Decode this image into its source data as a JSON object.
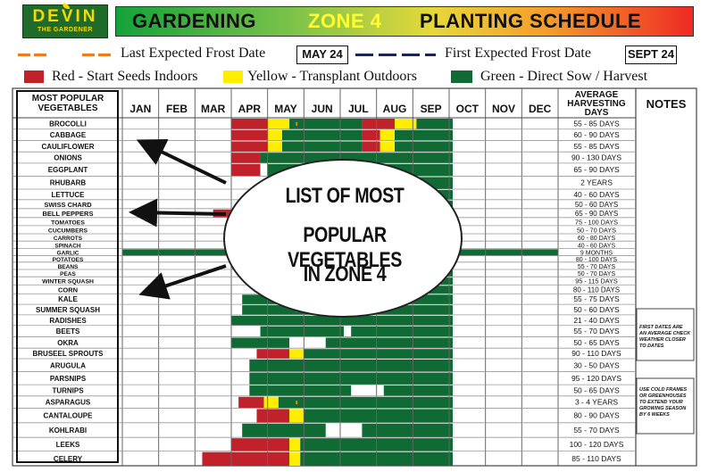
{
  "header": {
    "logo_name": "DEVIN",
    "logo_sub": "THE GARDENER",
    "title_gardening": "GARDENING",
    "title_zone": "ZONE 4",
    "title_planting": "PLANTING SCHEDULE"
  },
  "legend": {
    "last_frost_label": "Last Expected Frost Date",
    "last_frost_date": "MAY 24",
    "first_frost_label": "First Expected Frost Date",
    "first_frost_date": "SEPT 24",
    "red_label": "Red - Start Seeds Indoors",
    "yellow_label": "Yellow - Transplant Outdoors",
    "green_label": "Green - Direct Sow / Harvest",
    "colors": {
      "red": "#c0212a",
      "yellow": "#ffee00",
      "green": "#0f6a34",
      "orange": "#f07a20",
      "navy": "#1a2450"
    }
  },
  "table": {
    "veg_header_1": "MOST POPULAR",
    "veg_header_2": "VEGETABLES",
    "harvest_header_1": "AVERAGE",
    "harvest_header_2": "HARVESTING",
    "harvest_header_3": "DAYS",
    "notes_header": "NOTES",
    "note_1": [
      "FIRST DATES ARE",
      "AN AVERAGE CHECK",
      "WEATHER CLOSER",
      "TO DATES"
    ],
    "note_2": [
      "USE COLD FRAMES",
      "OR GREENHOUSES",
      "TO EXTEND YOUR",
      "GROWING SEASON",
      "BY 6 WEEKS"
    ]
  },
  "overlay": {
    "line1": "LIST OF MOST",
    "line2": "POPULAR  VEGETABLES",
    "line3": "IN ZONE 4"
  },
  "chart_data": {
    "type": "table",
    "title": "GARDENING ZONE 4 PLANTING SCHEDULE",
    "months": [
      "JAN",
      "FEB",
      "MAR",
      "APR",
      "MAY",
      "JUN",
      "JUL",
      "AUG",
      "SEP",
      "OCT",
      "NOV",
      "DEC"
    ],
    "rows": [
      {
        "veg": "BROCOLLI",
        "days": "55 - 85 DAYS",
        "segs": [
          [
            "r",
            3,
            4
          ],
          [
            "y",
            4,
            4.6
          ],
          [
            "g",
            4.6,
            6.6
          ],
          [
            "r",
            6.6,
            7.5
          ],
          [
            "y",
            7.5,
            8.1
          ],
          [
            "g",
            8.1,
            9.1
          ]
        ]
      },
      {
        "veg": "CABBAGE",
        "days": "60 - 90 DAYS",
        "segs": [
          [
            "r",
            3,
            4
          ],
          [
            "y",
            4,
            4.4
          ],
          [
            "g",
            4.4,
            6.6
          ],
          [
            "r",
            6.6,
            7.1
          ],
          [
            "y",
            7.1,
            7.5
          ],
          [
            "g",
            7.5,
            9.1
          ]
        ]
      },
      {
        "veg": "CAULIFLOWER",
        "days": "55 - 85 DAYS",
        "segs": [
          [
            "r",
            3,
            4
          ],
          [
            "y",
            4,
            4.4
          ],
          [
            "g",
            4.4,
            6.6
          ],
          [
            "r",
            6.6,
            7.1
          ],
          [
            "y",
            7.1,
            7.5
          ],
          [
            "g",
            7.5,
            9.1
          ]
        ]
      },
      {
        "veg": "ONIONS",
        "days": "90 - 130 DAYS",
        "segs": [
          [
            "r",
            3,
            3.8
          ],
          [
            "g",
            3.8,
            9.1
          ]
        ]
      },
      {
        "veg": "EGGPLANT",
        "days": "65 - 90 DAYS",
        "segs": [
          [
            "r",
            3,
            3.8
          ],
          [
            "g",
            4,
            9.1
          ]
        ]
      },
      {
        "veg": "RHUBARB",
        "days": "2 YEARS",
        "segs": [
          [
            "g",
            4.6,
            9.1
          ]
        ]
      },
      {
        "veg": "LETTUCE",
        "days": "40 - 60 DAYS",
        "segs": [
          [
            "g",
            4.4,
            9.1
          ]
        ]
      },
      {
        "veg": "SWISS CHARD",
        "days": "50 - 60 DAYS",
        "segs": [
          [
            "g",
            4.4,
            9.1
          ]
        ]
      },
      {
        "veg": "BELL PEPPERS",
        "days": "65 - 90 DAYS",
        "segs": [
          [
            "r",
            2.5,
            3.8
          ],
          [
            "g",
            4,
            9.1
          ]
        ]
      },
      {
        "veg": "TOMATOES",
        "days": "75 - 100 DAYS",
        "segs": [
          [
            "g",
            4.4,
            9.1
          ]
        ]
      },
      {
        "veg": "CUCUMBERS",
        "days": "50 - 70 DAYS",
        "segs": [
          [
            "g",
            4.4,
            9.1
          ]
        ]
      },
      {
        "veg": "CARROTS",
        "days": "60 - 80 DAYS",
        "segs": [
          [
            "g",
            4.4,
            9.1
          ]
        ]
      },
      {
        "veg": "SPINACH",
        "days": "40 - 60 DAYS",
        "segs": [
          [
            "g",
            4.4,
            9.1
          ]
        ]
      },
      {
        "veg": "GARLIC",
        "days": "9 MONTHS",
        "segs": [
          [
            "g",
            0,
            12
          ]
        ]
      },
      {
        "veg": "POTATOES",
        "days": "80 - 100 DAYS",
        "segs": [
          [
            "g",
            4.4,
            9.1
          ]
        ]
      },
      {
        "veg": "BEANS",
        "days": "55 - 70 DAYS",
        "segs": [
          [
            "g",
            4.4,
            9.1
          ]
        ]
      },
      {
        "veg": "PEAS",
        "days": "50 - 70 DAYS",
        "segs": [
          [
            "g",
            3.8,
            9.1
          ]
        ]
      },
      {
        "veg": "WINTER SQUASH",
        "days": "95 - 115 DAYS",
        "segs": [
          [
            "g",
            4.4,
            9.1
          ]
        ]
      },
      {
        "veg": "CORN",
        "days": "80 - 110 DAYS",
        "segs": [
          [
            "g",
            4.4,
            9.1
          ]
        ]
      },
      {
        "veg": "KALE",
        "days": "55 - 75 DAYS",
        "segs": [
          [
            "g",
            3.3,
            9.1
          ]
        ]
      },
      {
        "veg": "SUMMER SQUASH",
        "days": "50 - 60 DAYS",
        "segs": [
          [
            "g",
            3.3,
            9.1
          ]
        ]
      },
      {
        "veg": "RADISHES",
        "days": "21 - 40 DAYS",
        "segs": [
          [
            "g",
            3,
            9.1
          ]
        ]
      },
      {
        "veg": "BEETS",
        "days": "55 - 70 DAYS",
        "segs": [
          [
            "g",
            3.8,
            6.1
          ],
          [
            "g",
            6.3,
            9.1
          ]
        ]
      },
      {
        "veg": "OKRA",
        "days": "50 - 65 DAYS",
        "segs": [
          [
            "g",
            3,
            4.6
          ],
          [
            "g",
            5.6,
            9.1
          ]
        ]
      },
      {
        "veg": "BRUSEEL SPROUTS",
        "days": "90 - 110 DAYS",
        "segs": [
          [
            "r",
            3.7,
            4.6
          ],
          [
            "y",
            4.6,
            5
          ],
          [
            "g",
            5,
            9.1
          ]
        ]
      },
      {
        "veg": "ARUGULA",
        "days": "30 - 50 DAYS",
        "segs": [
          [
            "g",
            3.5,
            9.1
          ]
        ]
      },
      {
        "veg": "PARSNIPS",
        "days": "95 - 120 DAYS",
        "segs": [
          [
            "g",
            3.5,
            9.1
          ]
        ]
      },
      {
        "veg": "TURNIPS",
        "days": "50 - 65 DAYS",
        "segs": [
          [
            "g",
            3.5,
            6.3
          ],
          [
            "g",
            7.2,
            9.1
          ]
        ]
      },
      {
        "veg": "ASPARAGUS",
        "days": "3 - 4 YEARS",
        "segs": [
          [
            "r",
            3.2,
            3.9
          ],
          [
            "y",
            3.9,
            4.3
          ],
          [
            "g",
            4.3,
            9.1
          ]
        ]
      },
      {
        "veg": "CANTALOUPE",
        "days": "80 - 90 DAYS",
        "segs": [
          [
            "r",
            3.7,
            4.6
          ],
          [
            "y",
            4.6,
            5
          ],
          [
            "g",
            5,
            9.1
          ]
        ]
      },
      {
        "veg": "KOHLRABI",
        "days": "55 - 70 DAYS",
        "segs": [
          [
            "g",
            3.3,
            5.6
          ],
          [
            "g",
            6.6,
            9.1
          ]
        ]
      },
      {
        "veg": "LEEKS",
        "days": "100 - 120 DAYS",
        "segs": [
          [
            "r",
            3,
            4.6
          ],
          [
            "y",
            4.6,
            4.9
          ],
          [
            "g",
            4.9,
            9.1
          ]
        ]
      },
      {
        "veg": "CELERY",
        "days": "85 - 110 DAYS",
        "segs": [
          [
            "r",
            2.2,
            4.6
          ],
          [
            "y",
            4.6,
            4.9
          ],
          [
            "g",
            4.9,
            9.1
          ]
        ]
      }
    ]
  }
}
